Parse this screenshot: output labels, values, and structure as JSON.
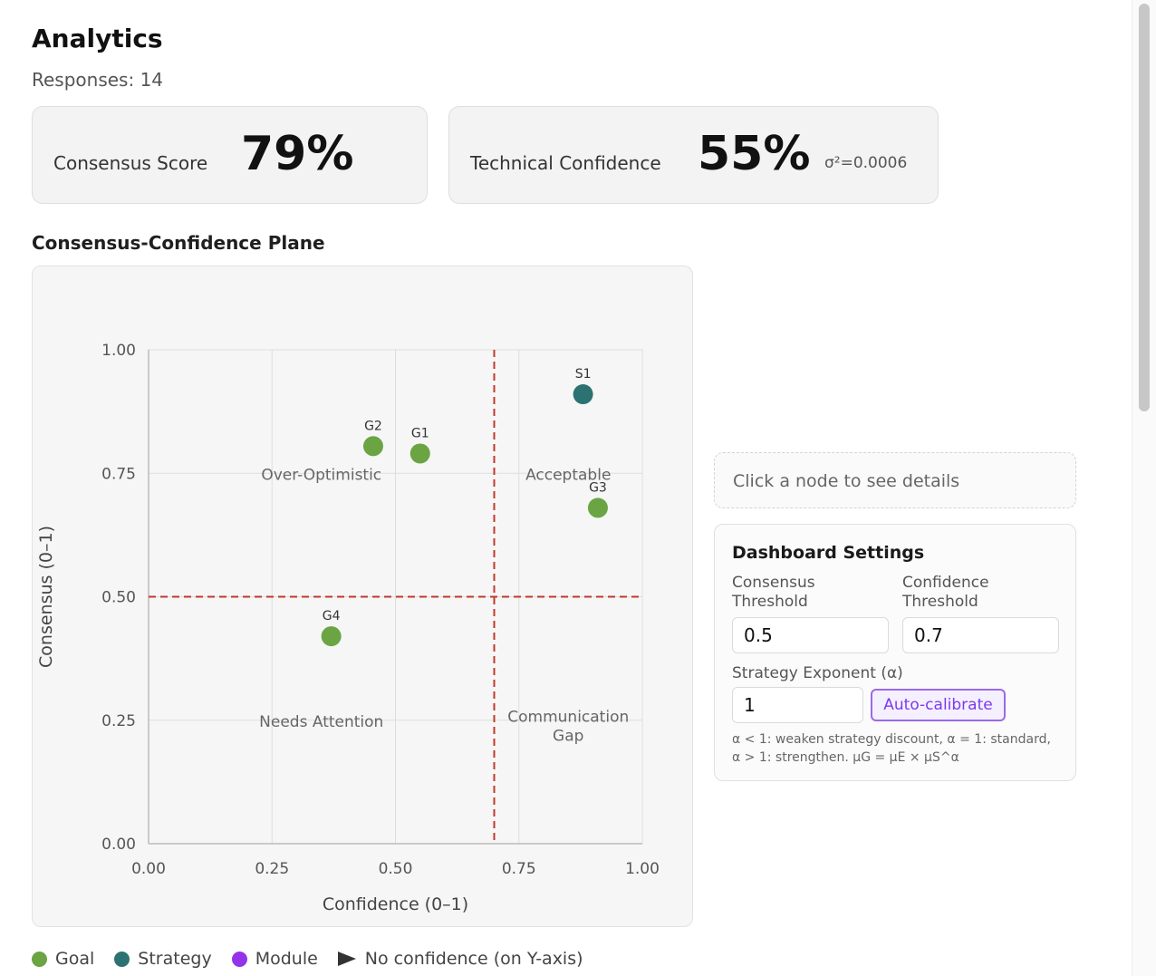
{
  "header": {
    "title": "Analytics",
    "responses": "Responses: 14"
  },
  "metrics": {
    "consensus": {
      "label": "Consensus Score",
      "value": "79%"
    },
    "confidence": {
      "label": "Technical Confidence",
      "value": "55%",
      "note": "σ²=0.0006"
    }
  },
  "plane": {
    "title": "Consensus-Confidence Plane"
  },
  "chart_data": {
    "type": "scatter",
    "title": "",
    "xlabel": "Confidence (0–1)",
    "ylabel": "Consensus (0–1)",
    "xlim": [
      0,
      1
    ],
    "ylim": [
      0,
      1
    ],
    "x_ticks": [
      "0.00",
      "0.25",
      "0.50",
      "0.75",
      "1.00"
    ],
    "y_ticks": [
      "0.00",
      "0.25",
      "0.50",
      "0.75",
      "1.00"
    ],
    "grid": true,
    "thresholds": {
      "x": 0.7,
      "y": 0.5
    },
    "quadrants": [
      {
        "label": [
          "Over-Optimistic"
        ],
        "x": 0.35,
        "y": 0.75
      },
      {
        "label": [
          "Acceptable"
        ],
        "x": 0.85,
        "y": 0.75
      },
      {
        "label": [
          "Needs Attention"
        ],
        "x": 0.35,
        "y": 0.25
      },
      {
        "label": [
          "Communication",
          "Gap"
        ],
        "x": 0.85,
        "y": 0.26
      }
    ],
    "series": [
      {
        "name": "Goal",
        "color": "#6aa443",
        "points": [
          {
            "label": "G1",
            "x": 0.55,
            "y": 0.79
          },
          {
            "label": "G2",
            "x": 0.455,
            "y": 0.805
          },
          {
            "label": "G3",
            "x": 0.91,
            "y": 0.68
          },
          {
            "label": "G4",
            "x": 0.37,
            "y": 0.42
          }
        ]
      },
      {
        "name": "Strategy",
        "color": "#2d7272",
        "points": [
          {
            "label": "S1",
            "x": 0.88,
            "y": 0.91
          }
        ]
      }
    ]
  },
  "details": {
    "placeholder": "Click a node to see details"
  },
  "settings": {
    "title": "Dashboard Settings",
    "consensus_label": "Consensus Threshold",
    "consensus_value": "0.5",
    "confidence_label": "Confidence Threshold",
    "confidence_value": "0.7",
    "exponent_label": "Strategy Exponent (α)",
    "exponent_value": "1",
    "calibrate_label": "Auto-calibrate",
    "help": "α < 1: weaken strategy discount, α = 1: standard, α > 1: strengthen. μG = μE × μS^α"
  },
  "legend": {
    "items": [
      {
        "label": "Goal",
        "color": "#6aa443",
        "shape": "dot"
      },
      {
        "label": "Strategy",
        "color": "#2d7272",
        "shape": "dot"
      },
      {
        "label": "Module",
        "color": "#9333ea",
        "shape": "dot"
      },
      {
        "label": "No confidence (on Y-axis)",
        "color": "#333333",
        "shape": "triangle"
      }
    ]
  }
}
